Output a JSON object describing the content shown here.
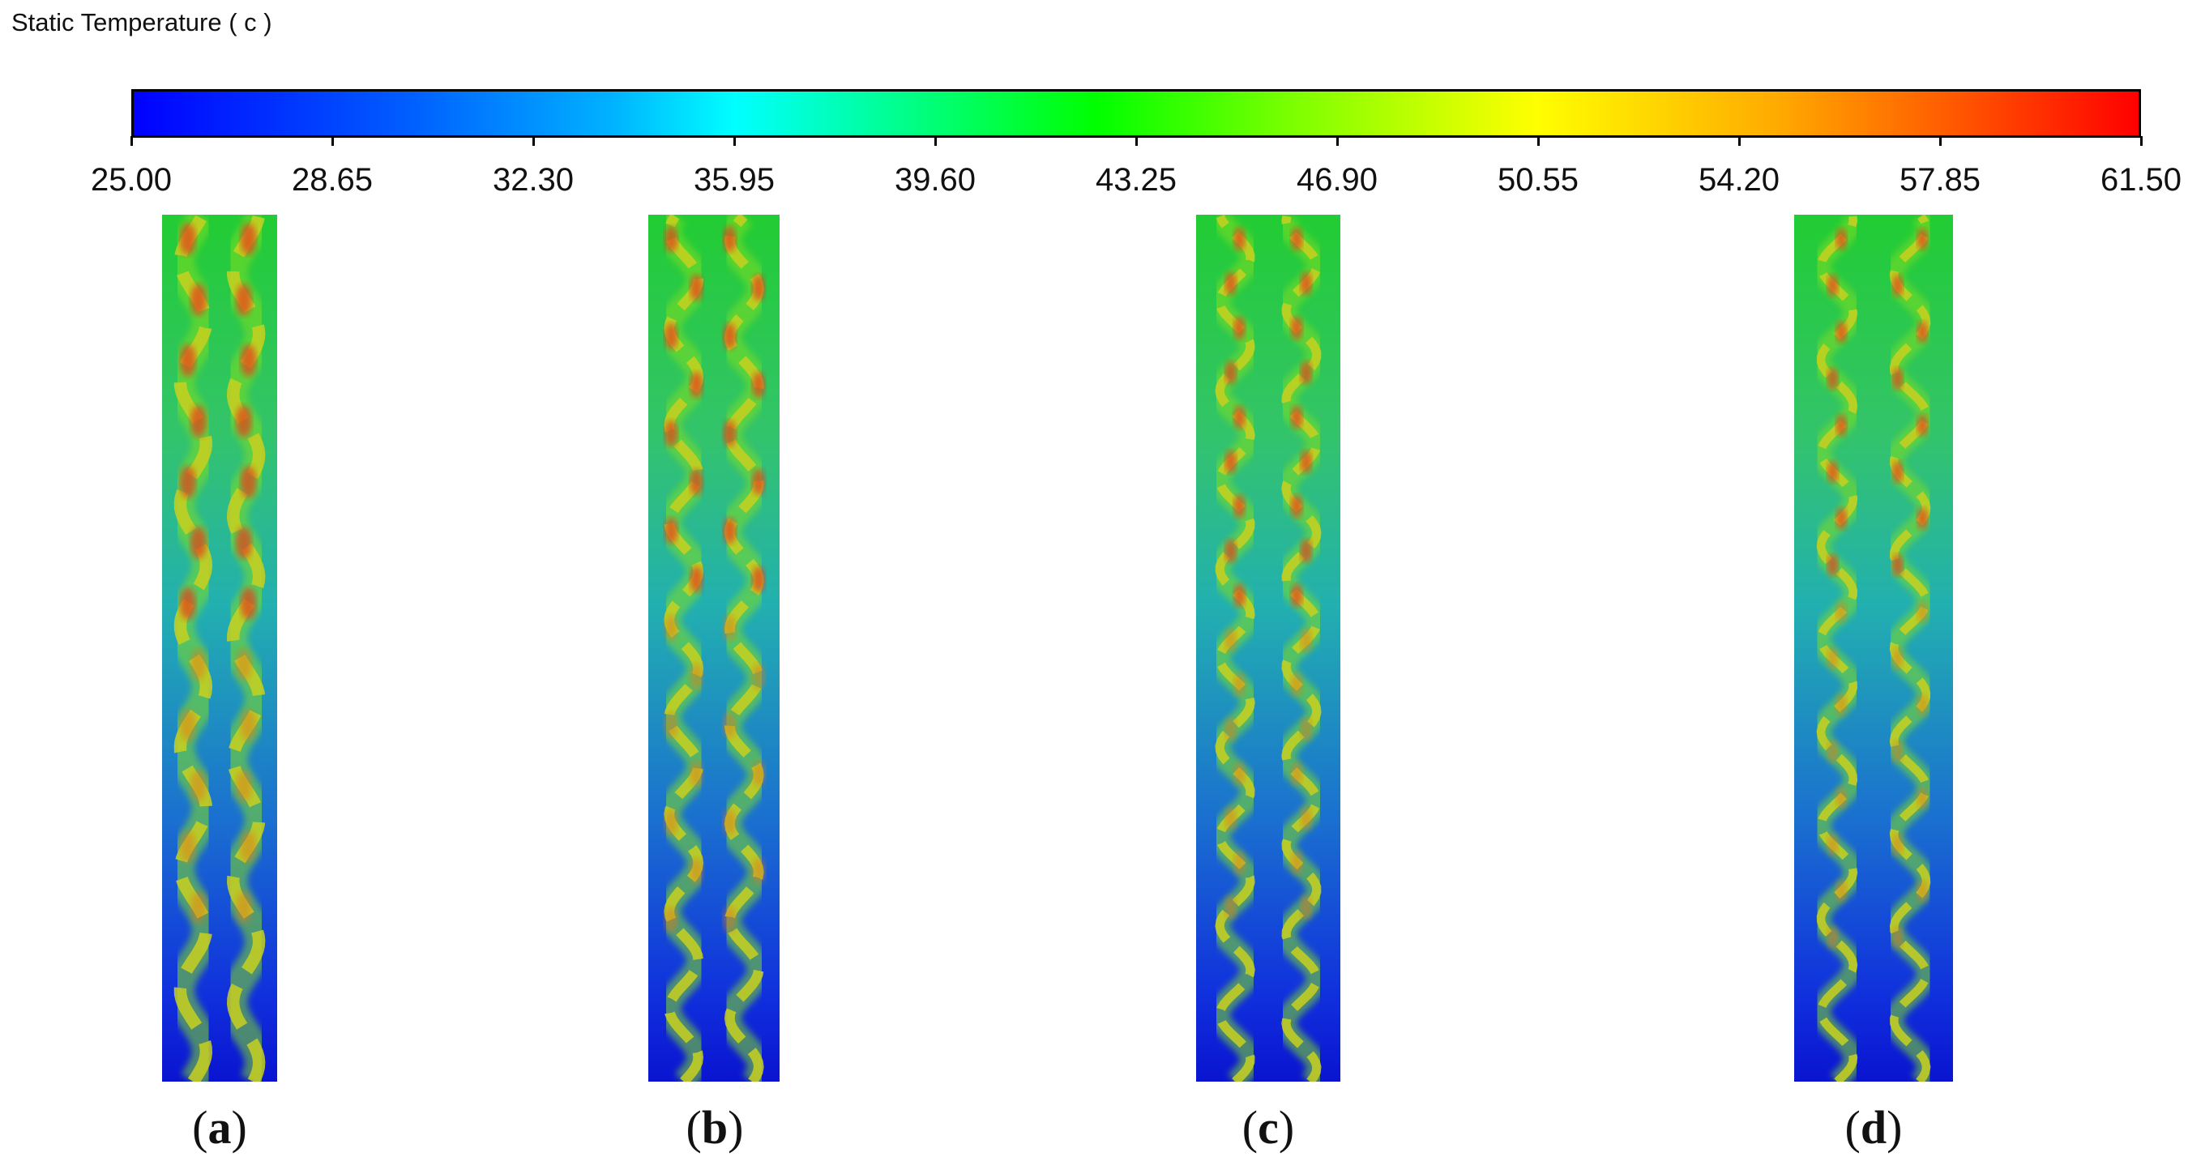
{
  "title": "Static Temperature ( c )",
  "colorbar": {
    "min": 25.0,
    "max": 61.5,
    "tick_labels": [
      "25.00",
      "28.65",
      "32.30",
      "35.95",
      "39.60",
      "43.25",
      "46.90",
      "50.55",
      "54.20",
      "57.85",
      "61.50"
    ],
    "colors": [
      "#0000ff",
      "#00ffff",
      "#00ff00",
      "#ffff00",
      "#ff0000"
    ]
  },
  "panels": [
    {
      "label": "a"
    },
    {
      "label": "b"
    },
    {
      "label": "c"
    },
    {
      "label": "d"
    }
  ]
}
